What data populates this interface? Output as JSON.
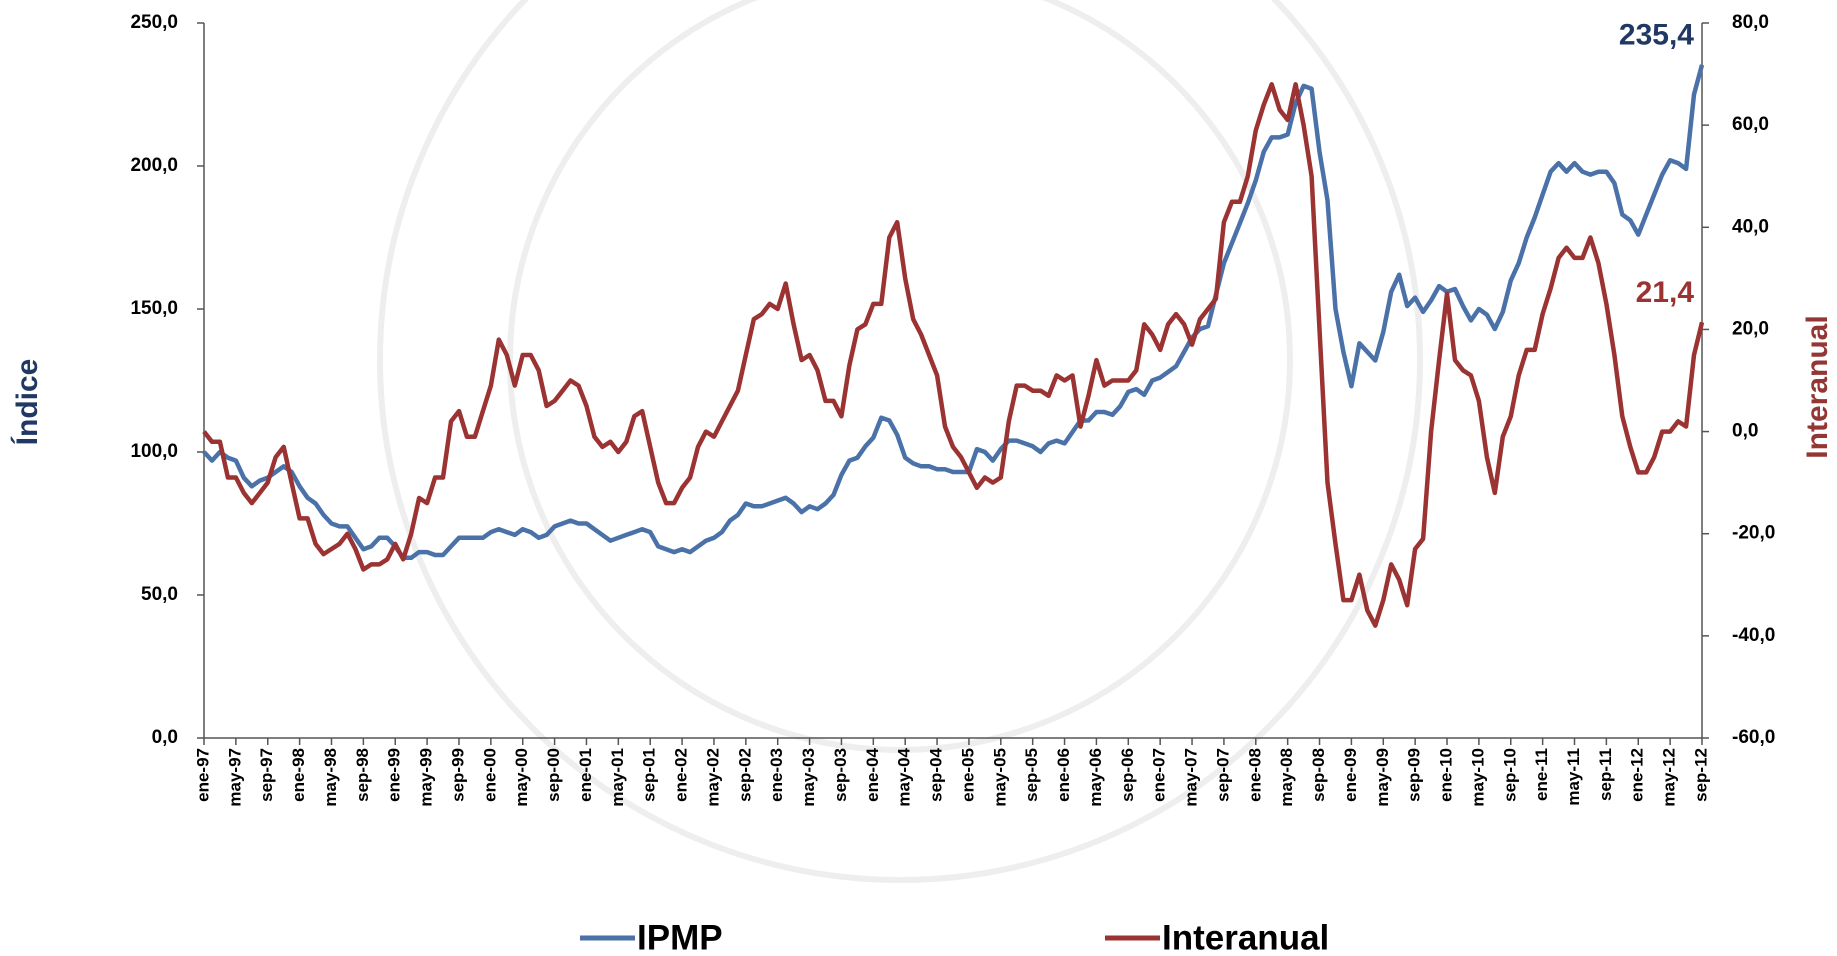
{
  "chart_data": {
    "type": "line",
    "ylabel": "Índice",
    "y2label": "Interanual",
    "categories": [
      "ene-97",
      null,
      null,
      null,
      "may-97",
      null,
      null,
      null,
      "sep-97",
      null,
      null,
      null,
      "ene-98",
      null,
      null,
      null,
      "may-98",
      null,
      null,
      null,
      "sep-98",
      null,
      null,
      null,
      "ene-99",
      null,
      null,
      null,
      "may-99",
      null,
      null,
      null,
      "sep-99",
      null,
      null,
      null,
      "ene-00",
      null,
      null,
      null,
      "may-00",
      null,
      null,
      null,
      "sep-00",
      null,
      null,
      null,
      "ene-01",
      null,
      null,
      null,
      "may-01",
      null,
      null,
      null,
      "sep-01",
      null,
      null,
      null,
      "ene-02",
      null,
      null,
      null,
      "may-02",
      null,
      null,
      null,
      "sep-02",
      null,
      null,
      null,
      "ene-03",
      null,
      null,
      null,
      "may-03",
      null,
      null,
      null,
      "sep-03",
      null,
      null,
      null,
      "ene-04",
      null,
      null,
      null,
      "may-04",
      null,
      null,
      null,
      "sep-04",
      null,
      null,
      null,
      "ene-05",
      null,
      null,
      null,
      "may-05",
      null,
      null,
      null,
      "sep-05",
      null,
      null,
      null,
      "ene-06",
      null,
      null,
      null,
      "may-06",
      null,
      null,
      null,
      "sep-06",
      null,
      null,
      null,
      "ene-07",
      null,
      null,
      null,
      "may-07",
      null,
      null,
      null,
      "sep-07",
      null,
      null,
      null,
      "ene-08",
      null,
      null,
      null,
      "may-08",
      null,
      null,
      null,
      "sep-08",
      null,
      null,
      null,
      "ene-09",
      null,
      null,
      null,
      "may-09",
      null,
      null,
      null,
      "sep-09",
      null,
      null,
      null,
      "ene-10",
      null,
      null,
      null,
      "may-10",
      null,
      null,
      null,
      "sep-10",
      null,
      null,
      null,
      "ene-11",
      null,
      null,
      null,
      "may-11",
      null,
      null,
      null,
      "sep-11",
      null,
      null,
      null,
      "ene-12",
      null,
      null,
      null,
      "may-12",
      null,
      null,
      null,
      "sep-12"
    ],
    "series": [
      {
        "name": "IPMP",
        "color": "#4a72a8",
        "axis": "y",
        "values": [
          100,
          97,
          100,
          98,
          97,
          91,
          88,
          90,
          91,
          93,
          95,
          93,
          88,
          84,
          82,
          78,
          75,
          74,
          74,
          70,
          66,
          67,
          70,
          70,
          67,
          63,
          63,
          65,
          65,
          64,
          64,
          67,
          70,
          70,
          70,
          70,
          72,
          73,
          72,
          71,
          73,
          72,
          70,
          71,
          74,
          75,
          76,
          75,
          75,
          73,
          71,
          69,
          70,
          71,
          72,
          73,
          72,
          67,
          66,
          65,
          66,
          65,
          67,
          69,
          70,
          72,
          76,
          78,
          82,
          81,
          81,
          82,
          83,
          84,
          82,
          79,
          81,
          80,
          82,
          85,
          92,
          97,
          98,
          102,
          105,
          112,
          111,
          106,
          98,
          96,
          95,
          95,
          94,
          94,
          93,
          93,
          93,
          101,
          100,
          97,
          101,
          104,
          104,
          103,
          102,
          100,
          103,
          104,
          103,
          107,
          111,
          111,
          114,
          114,
          113,
          116,
          121,
          122,
          120,
          125,
          126,
          128,
          130,
          135,
          140,
          143,
          144,
          155,
          166,
          173,
          180,
          187,
          195,
          205,
          210,
          210,
          211,
          222,
          228,
          227,
          205,
          188,
          150,
          135,
          123,
          138,
          135,
          132,
          142,
          156,
          162,
          151,
          154,
          149,
          153,
          158,
          156,
          157,
          151,
          146,
          150,
          148,
          143,
          149,
          160,
          166,
          175,
          182,
          190,
          198,
          201,
          198,
          201,
          198,
          197,
          198,
          198,
          194,
          183,
          181,
          176,
          183,
          190,
          197,
          202,
          201,
          199,
          225,
          235.4
        ],
        "value_labels": {
          "188": "235,4"
        },
        "label_color": "#1f3864"
      },
      {
        "name": "Interanual",
        "color": "#9b3333",
        "axis": "y2",
        "values": [
          0,
          -2,
          -2,
          -9,
          -9,
          -12,
          -14,
          -12,
          -10,
          -5,
          -3,
          -10,
          -17,
          -17,
          -22,
          -24,
          -23,
          -22,
          -20,
          -23,
          -27,
          -26,
          -26,
          -25,
          -22,
          -25,
          -20,
          -13,
          -14,
          -9,
          -9,
          2,
          4,
          -1,
          -1,
          4,
          9,
          18,
          15,
          9,
          15,
          15,
          12,
          5,
          6,
          8,
          10,
          9,
          5,
          -1,
          -3,
          -2,
          -4,
          -2,
          3,
          4,
          -3,
          -10,
          -14,
          -14,
          -11,
          -9,
          -3,
          0,
          -1,
          2,
          5,
          8,
          15,
          22,
          23,
          25,
          24,
          29,
          21,
          14,
          15,
          12,
          6,
          6,
          3,
          13,
          20,
          21,
          25,
          25,
          38,
          41,
          30,
          22,
          19,
          15,
          11,
          1,
          -3,
          -5,
          -8,
          -11,
          -9,
          -10,
          -9,
          2,
          9,
          9,
          8,
          8,
          7,
          11,
          10,
          11,
          1,
          7,
          14,
          9,
          10,
          10,
          10,
          12,
          21,
          19,
          16,
          21,
          23,
          21,
          17,
          22,
          24,
          26,
          41,
          45,
          45,
          50,
          59,
          64,
          68,
          63,
          61,
          68,
          60,
          50,
          20,
          -10,
          -22,
          -33,
          -33,
          -28,
          -35,
          -38,
          -33,
          -26,
          -29,
          -34,
          -23,
          -21,
          0,
          14,
          27,
          14,
          12,
          11,
          6,
          -5,
          -12,
          -1,
          3,
          11,
          16,
          16,
          23,
          28,
          34,
          36,
          34,
          34,
          38,
          33,
          25,
          15,
          3,
          -3,
          -8,
          -8,
          -5,
          0,
          0,
          2,
          1,
          15,
          21.4
        ],
        "value_labels": {
          "188": "21,4"
        },
        "label_color": "#9b3333"
      }
    ],
    "ylim": [
      0,
      250
    ],
    "yticks": [
      {
        "value": 0,
        "label": "0,0"
      },
      {
        "value": 50,
        "label": "50,0"
      },
      {
        "value": 100,
        "label": "100,0"
      },
      {
        "value": 150,
        "label": "150,0"
      },
      {
        "value": 200,
        "label": "200,0"
      },
      {
        "value": 250,
        "label": "250,0"
      }
    ],
    "y2lim": [
      -60,
      80
    ],
    "y2ticks": [
      {
        "value": -60,
        "label": "-60,0"
      },
      {
        "value": -40,
        "label": "-40,0"
      },
      {
        "value": -20,
        "label": "-20,0"
      },
      {
        "value": 0,
        "label": "0,0"
      },
      {
        "value": 20,
        "label": "20,0"
      },
      {
        "value": 40,
        "label": "40,0"
      },
      {
        "value": 60,
        "label": "60,0"
      },
      {
        "value": 80,
        "label": "80,0"
      }
    ],
    "ylabel_color": "#1f3864",
    "y2label_color": "#943634",
    "grid": false,
    "legend": "bottom"
  }
}
